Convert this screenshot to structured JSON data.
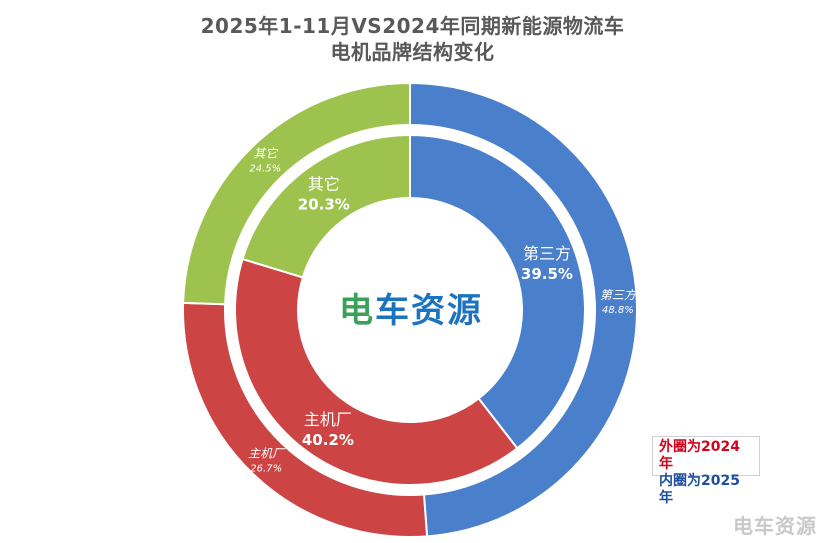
{
  "header": {
    "title_line1": "2025年1-11月VS2024年同期新能源物流车",
    "title_line2": "电机品牌结构变化"
  },
  "legend": {
    "outer_label": "外圈为2024年",
    "inner_label": "内圈为2025年"
  },
  "center_logo": {
    "char1": "电",
    "char2": "车",
    "char3": "资",
    "char4": "源"
  },
  "watermark": "电车资源",
  "colors": {
    "third_party": "#4a7fcc",
    "oem": "#cc4444",
    "other": "#9dc34e",
    "logo_green": "#3aa05a",
    "logo_blue": "#1e73be"
  },
  "chart_data": {
    "type": "pie",
    "variant": "double-donut",
    "title": "2025年1-11月VS2024年同期新能源物流车电机品牌结构变化",
    "categories": [
      "第三方",
      "主机厂",
      "其它"
    ],
    "series": [
      {
        "name": "外圈为2024年",
        "ring": "outer",
        "values": [
          48.8,
          26.7,
          24.5
        ],
        "labels": [
          "第三方",
          "主机厂",
          "其它"
        ],
        "value_labels": [
          "48.8%",
          "26.7%",
          "24.5%"
        ]
      },
      {
        "name": "内圈为2025年",
        "ring": "inner",
        "values": [
          39.5,
          40.2,
          20.3
        ],
        "labels": [
          "第三方",
          "主机厂",
          "其它"
        ],
        "value_labels": [
          "39.5%",
          "40.2%",
          "20.3%"
        ]
      }
    ],
    "legend_position": "bottom-right"
  }
}
